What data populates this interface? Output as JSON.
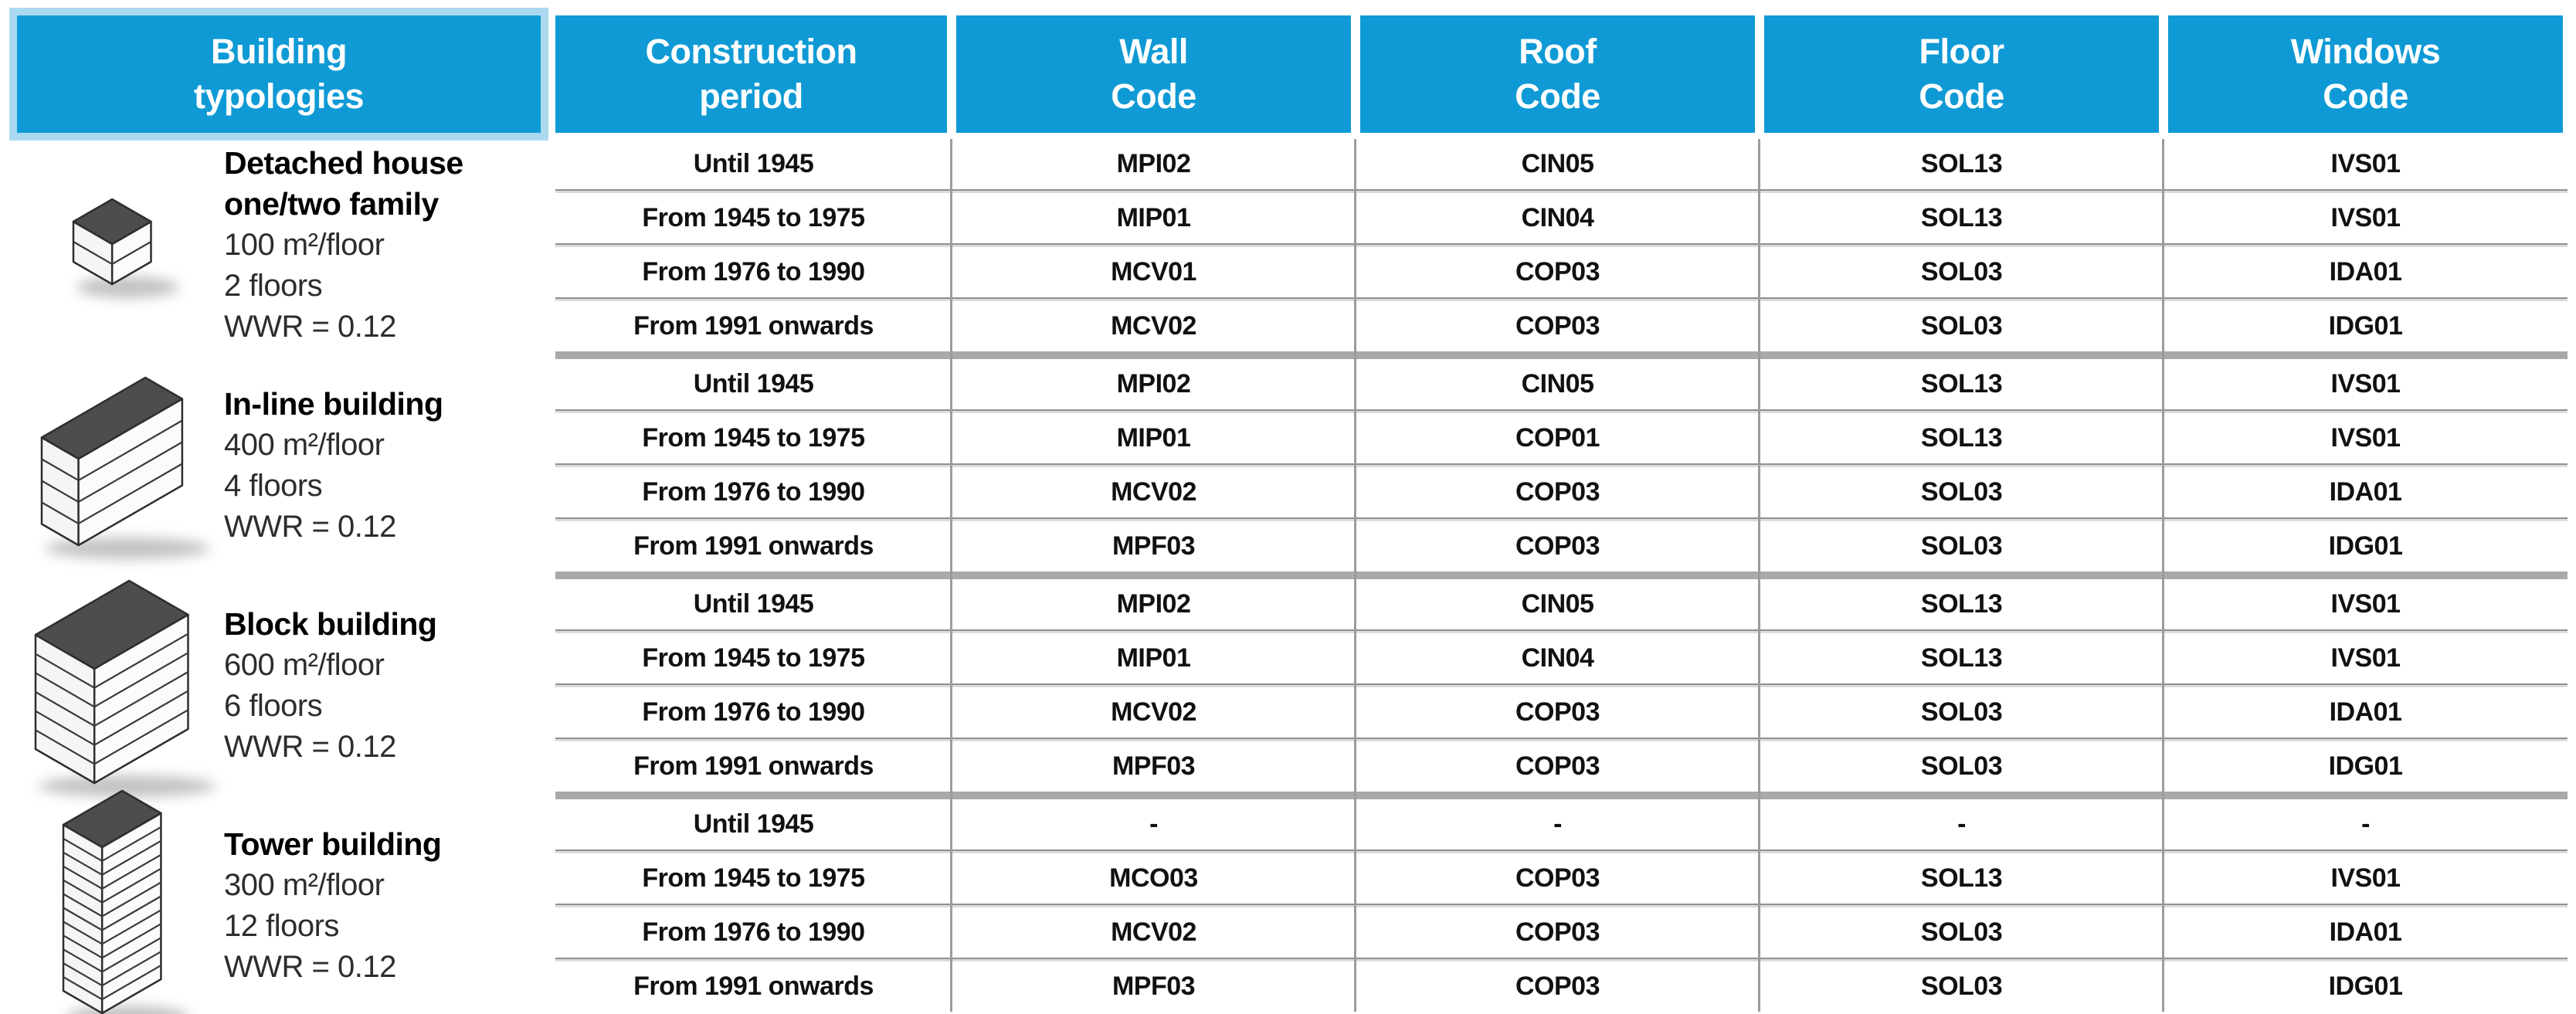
{
  "colors": {
    "header_blue": "#0f9ad5",
    "header_frame_light_blue": "#abdaf0",
    "header_text": "#ffffff",
    "group_separator_gray": "#a9a9a9",
    "row_line_gray": "#8f8f8f",
    "building_top_gray": "#4d4d4b",
    "body_text": "#111111"
  },
  "header": {
    "columns": [
      {
        "line1": "Building",
        "line2": "typologies"
      },
      {
        "line1": "Construction",
        "line2": "period"
      },
      {
        "line1": "Wall",
        "line2": "Code"
      },
      {
        "line1": "Roof",
        "line2": "Code"
      },
      {
        "line1": "Floor",
        "line2": "Code"
      },
      {
        "line1": "Windows",
        "line2": "Code"
      }
    ]
  },
  "typologies": [
    {
      "name_lines": [
        "Detached house",
        "one/two family"
      ],
      "area": "100 m²/floor",
      "floors": "2 floors",
      "wwr": "WWR = 0.12",
      "icon": "detached-house-icon",
      "rows": [
        {
          "period": "Until 1945",
          "wall": "MPI02",
          "roof": "CIN05",
          "floor": "SOL13",
          "windows": "IVS01"
        },
        {
          "period": "From 1945 to 1975",
          "wall": "MIP01",
          "roof": "CIN04",
          "floor": "SOL13",
          "windows": "IVS01"
        },
        {
          "period": "From 1976 to 1990",
          "wall": "MCV01",
          "roof": "COP03",
          "floor": "SOL03",
          "windows": "IDA01"
        },
        {
          "period": "From 1991 onwards",
          "wall": "MCV02",
          "roof": "COP03",
          "floor": "SOL03",
          "windows": "IDG01"
        }
      ]
    },
    {
      "name_lines": [
        "In-line building"
      ],
      "area": "400 m²/floor",
      "floors": "4 floors",
      "wwr": "WWR = 0.12",
      "icon": "in-line-building-icon",
      "rows": [
        {
          "period": "Until 1945",
          "wall": "MPI02",
          "roof": "CIN05",
          "floor": "SOL13",
          "windows": "IVS01"
        },
        {
          "period": "From 1945 to 1975",
          "wall": "MIP01",
          "roof": "COP01",
          "floor": "SOL13",
          "windows": "IVS01"
        },
        {
          "period": "From 1976 to 1990",
          "wall": "MCV02",
          "roof": "COP03",
          "floor": "SOL03",
          "windows": "IDA01"
        },
        {
          "period": "From 1991 onwards",
          "wall": "MPF03",
          "roof": "COP03",
          "floor": "SOL03",
          "windows": "IDG01"
        }
      ]
    },
    {
      "name_lines": [
        "Block building"
      ],
      "area": "600 m²/floor",
      "floors": "6 floors",
      "wwr": "WWR = 0.12",
      "icon": "block-building-icon",
      "rows": [
        {
          "period": "Until 1945",
          "wall": "MPI02",
          "roof": "CIN05",
          "floor": "SOL13",
          "windows": "IVS01"
        },
        {
          "period": "From 1945 to 1975",
          "wall": "MIP01",
          "roof": "CIN04",
          "floor": "SOL13",
          "windows": "IVS01"
        },
        {
          "period": "From 1976 to 1990",
          "wall": "MCV02",
          "roof": "COP03",
          "floor": "SOL03",
          "windows": "IDA01"
        },
        {
          "period": "From 1991 onwards",
          "wall": "MPF03",
          "roof": "COP03",
          "floor": "SOL03",
          "windows": "IDG01"
        }
      ]
    },
    {
      "name_lines": [
        "Tower building"
      ],
      "area": "300 m²/floor",
      "floors": "12 floors",
      "wwr": "WWR = 0.12",
      "icon": "tower-building-icon",
      "rows": [
        {
          "period": "Until 1945",
          "wall": "-",
          "roof": "-",
          "floor": "-",
          "windows": "-"
        },
        {
          "period": "From 1945 to 1975",
          "wall": "MCO03",
          "roof": "COP03",
          "floor": "SOL13",
          "windows": "IVS01"
        },
        {
          "period": "From 1976 to 1990",
          "wall": "MCV02",
          "roof": "COP03",
          "floor": "SOL03",
          "windows": "IDA01"
        },
        {
          "period": "From 1991 onwards",
          "wall": "MPF03",
          "roof": "COP03",
          "floor": "SOL03",
          "windows": "IDG01"
        }
      ]
    }
  ]
}
